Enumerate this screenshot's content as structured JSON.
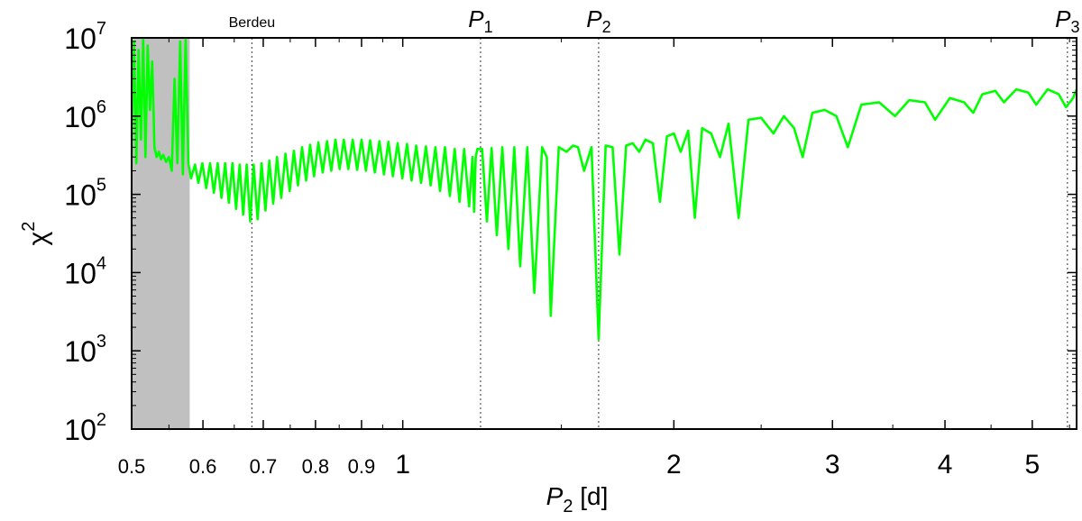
{
  "chart_data": {
    "type": "line",
    "title": "",
    "xlabel": {
      "italic": "P",
      "sub": "2",
      "rest": " [d]"
    },
    "ylabel": {
      "base": "χ",
      "sup": "2"
    },
    "xscale": "log",
    "yscale": "log",
    "xlim": [
      0.5,
      5.6
    ],
    "ylim": [
      100,
      10000000
    ],
    "grid": false,
    "legend": "none",
    "line_color": "#00ff00",
    "shade_color": "#c0c0c0",
    "shaded_region": [
      0.5,
      0.58
    ],
    "x_ticks_small": [
      {
        "value": 0.5,
        "label": "0.5"
      },
      {
        "value": 0.6,
        "label": "0.6"
      },
      {
        "value": 0.7,
        "label": "0.7"
      },
      {
        "value": 0.8,
        "label": "0.8"
      },
      {
        "value": 0.9,
        "label": "0.9"
      }
    ],
    "x_ticks_large": [
      {
        "value": 1,
        "label": "1"
      },
      {
        "value": 2,
        "label": "2"
      },
      {
        "value": 3,
        "label": "3"
      },
      {
        "value": 4,
        "label": "4"
      },
      {
        "value": 5,
        "label": "5"
      }
    ],
    "y_ticks": [
      {
        "exp": 2,
        "base": "10",
        "sup": "2"
      },
      {
        "exp": 3,
        "base": "10",
        "sup": "3"
      },
      {
        "exp": 4,
        "base": "10",
        "sup": "4"
      },
      {
        "exp": 5,
        "base": "10",
        "sup": "5"
      },
      {
        "exp": 6,
        "base": "10",
        "sup": "6"
      },
      {
        "exp": 7,
        "base": "10",
        "sup": "7"
      }
    ],
    "markers": [
      {
        "x": 0.68,
        "label": "Berdeu",
        "italic": false,
        "sub": ""
      },
      {
        "x": 1.22,
        "label": "P",
        "italic": true,
        "sub": "1"
      },
      {
        "x": 1.65,
        "label": "P",
        "italic": true,
        "sub": "2"
      },
      {
        "x": 5.47,
        "label": "P",
        "italic": true,
        "sub": "3"
      }
    ],
    "series": [
      {
        "points": [
          [
            0.5,
            300000
          ],
          [
            0.503,
            9000000
          ],
          [
            0.506,
            250000
          ],
          [
            0.509,
            7000000
          ],
          [
            0.512,
            500000
          ],
          [
            0.515,
            10000000
          ],
          [
            0.518,
            300000
          ],
          [
            0.521,
            8000000
          ],
          [
            0.524,
            1200000
          ],
          [
            0.527,
            5000000
          ],
          [
            0.53,
            400000
          ],
          [
            0.533,
            300000
          ],
          [
            0.536,
            350000
          ],
          [
            0.539,
            280000
          ],
          [
            0.542,
            320000
          ],
          [
            0.546,
            260000
          ],
          [
            0.55,
            300000
          ],
          [
            0.554,
            200000
          ],
          [
            0.558,
            3000000
          ],
          [
            0.562,
            250000
          ],
          [
            0.566,
            9000000
          ],
          [
            0.57,
            180000
          ],
          [
            0.574,
            10000000
          ],
          [
            0.578,
            250000
          ],
          [
            0.582,
            160000
          ],
          [
            0.588,
            240000
          ],
          [
            0.593,
            140000
          ],
          [
            0.599,
            250000
          ],
          [
            0.605,
            120000
          ],
          [
            0.611,
            250000
          ],
          [
            0.617,
            105000
          ],
          [
            0.623,
            250000
          ],
          [
            0.629,
            90000
          ],
          [
            0.635,
            250000
          ],
          [
            0.641,
            78000
          ],
          [
            0.647,
            250000
          ],
          [
            0.653,
            65000
          ],
          [
            0.659,
            240000
          ],
          [
            0.665,
            55000
          ],
          [
            0.671,
            240000
          ],
          [
            0.677,
            45000
          ],
          [
            0.683,
            240000
          ],
          [
            0.69,
            48000
          ],
          [
            0.697,
            250000
          ],
          [
            0.704,
            62000
          ],
          [
            0.711,
            270000
          ],
          [
            0.718,
            76000
          ],
          [
            0.725,
            300000
          ],
          [
            0.733,
            90000
          ],
          [
            0.741,
            330000
          ],
          [
            0.749,
            110000
          ],
          [
            0.757,
            360000
          ],
          [
            0.765,
            130000
          ],
          [
            0.773,
            400000
          ],
          [
            0.781,
            150000
          ],
          [
            0.789,
            430000
          ],
          [
            0.797,
            170000
          ],
          [
            0.806,
            460000
          ],
          [
            0.815,
            190000
          ],
          [
            0.824,
            480000
          ],
          [
            0.833,
            200000
          ],
          [
            0.842,
            500000
          ],
          [
            0.851,
            210000
          ],
          [
            0.86,
            500000
          ],
          [
            0.87,
            210000
          ],
          [
            0.88,
            500000
          ],
          [
            0.89,
            205000
          ],
          [
            0.9,
            500000
          ],
          [
            0.91,
            200000
          ],
          [
            0.92,
            490000
          ],
          [
            0.931,
            190000
          ],
          [
            0.942,
            480000
          ],
          [
            0.953,
            180000
          ],
          [
            0.964,
            470000
          ],
          [
            0.975,
            170000
          ],
          [
            0.987,
            450000
          ],
          [
            0.999,
            160000
          ],
          [
            1.011,
            440000
          ],
          [
            1.023,
            150000
          ],
          [
            1.035,
            420000
          ],
          [
            1.048,
            140000
          ],
          [
            1.061,
            410000
          ],
          [
            1.074,
            130000
          ],
          [
            1.087,
            400000
          ],
          [
            1.1,
            110000
          ],
          [
            1.114,
            400000
          ],
          [
            1.128,
            95000
          ],
          [
            1.142,
            380000
          ],
          [
            1.156,
            80000
          ],
          [
            1.17,
            380000
          ],
          [
            1.185,
            70000
          ],
          [
            1.195,
            300000
          ],
          [
            1.2,
            60000
          ],
          [
            1.205,
            300000
          ],
          [
            1.21,
            380000
          ],
          [
            1.225,
            380000
          ],
          [
            1.24,
            45000
          ],
          [
            1.255,
            390000
          ],
          [
            1.272,
            30000
          ],
          [
            1.29,
            400000
          ],
          [
            1.31,
            20000
          ],
          [
            1.33,
            400000
          ],
          [
            1.35,
            12000
          ],
          [
            1.375,
            400000
          ],
          [
            1.4,
            5500
          ],
          [
            1.428,
            400000
          ],
          [
            1.445,
            300000
          ],
          [
            1.46,
            2800
          ],
          [
            1.49,
            400000
          ],
          [
            1.52,
            350000
          ],
          [
            1.545,
            420000
          ],
          [
            1.565,
            400000
          ],
          [
            1.59,
            200000
          ],
          [
            1.62,
            400000
          ],
          [
            1.65,
            1400
          ],
          [
            1.68,
            420000
          ],
          [
            1.71,
            400000
          ],
          [
            1.74,
            17000
          ],
          [
            1.77,
            420000
          ],
          [
            1.8,
            450000
          ],
          [
            1.83,
            350000
          ],
          [
            1.86,
            500000
          ],
          [
            1.895,
            450000
          ],
          [
            1.93,
            80000
          ],
          [
            1.965,
            550000
          ],
          [
            2.0,
            600000
          ],
          [
            2.035,
            350000
          ],
          [
            2.075,
            650000
          ],
          [
            2.11,
            50000
          ],
          [
            2.15,
            700000
          ],
          [
            2.2,
            600000
          ],
          [
            2.25,
            300000
          ],
          [
            2.3,
            800000
          ],
          [
            2.36,
            50000
          ],
          [
            2.42,
            900000
          ],
          [
            2.5,
            950000
          ],
          [
            2.58,
            600000
          ],
          [
            2.65,
            1000000
          ],
          [
            2.72,
            700000
          ],
          [
            2.78,
            300000
          ],
          [
            2.85,
            1100000
          ],
          [
            2.94,
            1200000
          ],
          [
            3.03,
            1000000
          ],
          [
            3.12,
            400000
          ],
          [
            3.23,
            1400000
          ],
          [
            3.38,
            1500000
          ],
          [
            3.52,
            1000000
          ],
          [
            3.65,
            1600000
          ],
          [
            3.8,
            1500000
          ],
          [
            3.9,
            900000
          ],
          [
            4.05,
            1700000
          ],
          [
            4.2,
            1500000
          ],
          [
            4.3,
            1100000
          ],
          [
            4.4,
            1900000
          ],
          [
            4.55,
            2100000
          ],
          [
            4.65,
            1500000
          ],
          [
            4.8,
            2200000
          ],
          [
            4.95,
            2000000
          ],
          [
            5.05,
            1400000
          ],
          [
            5.2,
            2200000
          ],
          [
            5.35,
            1900000
          ],
          [
            5.45,
            1300000
          ],
          [
            5.55,
            1700000
          ],
          [
            5.6,
            2200000
          ]
        ]
      }
    ]
  }
}
